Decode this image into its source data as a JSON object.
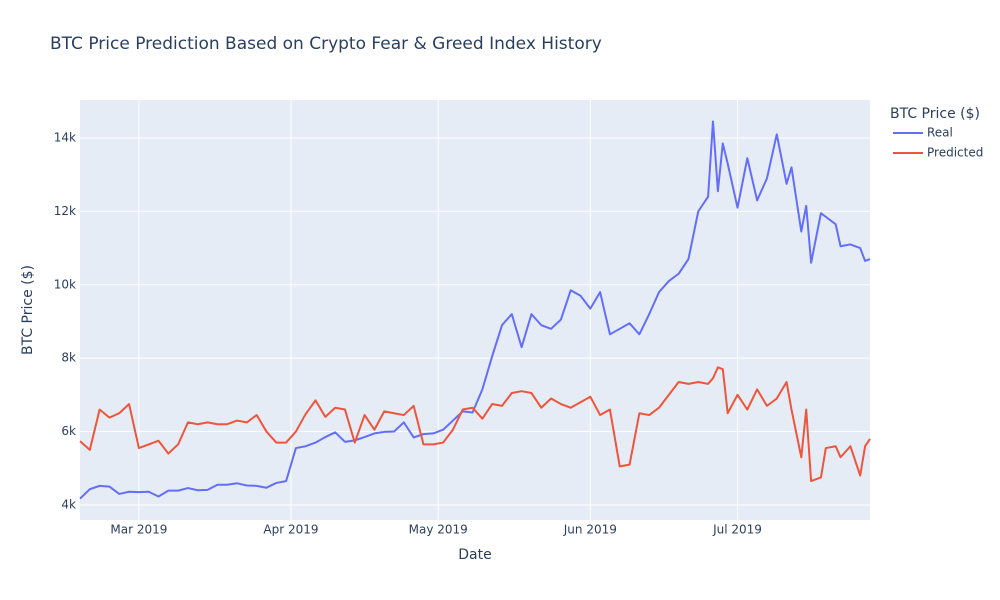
{
  "chart_data": {
    "type": "line",
    "title": "BTC Price Prediction Based on Crypto Fear & Greed Index History",
    "x_label": "Date",
    "y_label": "BTC Price ($)",
    "legend_title": "BTC Price ($)",
    "legend_position": "right",
    "grid": true,
    "x": [
      "2019-02-17",
      "2019-02-19",
      "2019-02-21",
      "2019-02-23",
      "2019-02-25",
      "2019-02-27",
      "2019-03-01",
      "2019-03-03",
      "2019-03-05",
      "2019-03-07",
      "2019-03-09",
      "2019-03-11",
      "2019-03-13",
      "2019-03-15",
      "2019-03-17",
      "2019-03-19",
      "2019-03-21",
      "2019-03-23",
      "2019-03-25",
      "2019-03-27",
      "2019-03-29",
      "2019-03-31",
      "2019-04-02",
      "2019-04-04",
      "2019-04-06",
      "2019-04-08",
      "2019-04-10",
      "2019-04-12",
      "2019-04-14",
      "2019-04-16",
      "2019-04-18",
      "2019-04-20",
      "2019-04-22",
      "2019-04-24",
      "2019-04-26",
      "2019-04-28",
      "2019-04-30",
      "2019-05-02",
      "2019-05-04",
      "2019-05-06",
      "2019-05-08",
      "2019-05-10",
      "2019-05-12",
      "2019-05-14",
      "2019-05-16",
      "2019-05-18",
      "2019-05-20",
      "2019-05-22",
      "2019-05-24",
      "2019-05-26",
      "2019-05-28",
      "2019-05-30",
      "2019-06-01",
      "2019-06-03",
      "2019-06-05",
      "2019-06-07",
      "2019-06-09",
      "2019-06-11",
      "2019-06-13",
      "2019-06-15",
      "2019-06-17",
      "2019-06-19",
      "2019-06-21",
      "2019-06-23",
      "2019-06-25",
      "2019-06-26",
      "2019-06-27",
      "2019-06-28",
      "2019-06-29",
      "2019-07-01",
      "2019-07-03",
      "2019-07-05",
      "2019-07-07",
      "2019-07-09",
      "2019-07-11",
      "2019-07-12",
      "2019-07-14",
      "2019-07-15",
      "2019-07-16",
      "2019-07-18",
      "2019-07-19",
      "2019-07-21",
      "2019-07-22",
      "2019-07-24",
      "2019-07-26",
      "2019-07-27",
      "2019-07-28"
    ],
    "series": [
      {
        "name": "Real",
        "color": "#636efa",
        "values": [
          4170,
          4430,
          4520,
          4500,
          4300,
          4360,
          4350,
          4360,
          4230,
          4390,
          4390,
          4460,
          4400,
          4410,
          4550,
          4550,
          4590,
          4530,
          4520,
          4470,
          4600,
          4650,
          5550,
          5600,
          5700,
          5850,
          5980,
          5720,
          5760,
          5850,
          5950,
          5990,
          6000,
          6250,
          5840,
          5930,
          5950,
          6050,
          6300,
          6550,
          6520,
          7150,
          8050,
          8900,
          9200,
          8300,
          9200,
          8900,
          8800,
          9050,
          9850,
          9700,
          9350,
          9800,
          8650,
          8800,
          8950,
          8650,
          9200,
          9800,
          10100,
          10300,
          10700,
          12000,
          12400,
          14450,
          12550,
          13850,
          13300,
          12100,
          13450,
          12300,
          12900,
          14100,
          12750,
          13200,
          11450,
          12150,
          10600,
          11950,
          11850,
          11650,
          11050,
          11100,
          11000,
          10650,
          10700
        ]
      },
      {
        "name": "Predicted",
        "color": "#ef553b",
        "values": [
          5740,
          5500,
          6600,
          6380,
          6500,
          6750,
          5550,
          5650,
          5750,
          5400,
          5650,
          6250,
          6200,
          6250,
          6200,
          6200,
          6300,
          6250,
          6450,
          6000,
          5700,
          5700,
          6000,
          6480,
          6850,
          6400,
          6650,
          6600,
          5700,
          6450,
          6050,
          6550,
          6500,
          6450,
          6700,
          5650,
          5650,
          5700,
          6050,
          6600,
          6650,
          6350,
          6750,
          6700,
          7050,
          7100,
          7050,
          6650,
          6900,
          6750,
          6650,
          6800,
          6950,
          6450,
          6600,
          5050,
          5100,
          6500,
          6450,
          6650,
          7000,
          7350,
          7300,
          7350,
          7300,
          7450,
          7750,
          7700,
          6500,
          7000,
          6600,
          7150,
          6700,
          6900,
          7350,
          6600,
          5300,
          6600,
          4650,
          4750,
          5550,
          5600,
          5300,
          5600,
          4800,
          5600,
          5800
        ]
      }
    ],
    "xlim": [
      "2019-02-17",
      "2019-07-28"
    ],
    "xticks": [
      {
        "value": "2019-03-01",
        "label": "Mar 2019"
      },
      {
        "value": "2019-04-01",
        "label": "Apr 2019"
      },
      {
        "value": "2019-05-01",
        "label": "May 2019"
      },
      {
        "value": "2019-06-01",
        "label": "Jun 2019"
      },
      {
        "value": "2019-07-01",
        "label": "Jul 2019"
      }
    ],
    "ylim": [
      3590,
      15035
    ],
    "yticks": [
      {
        "value": 4000,
        "label": "4k"
      },
      {
        "value": 6000,
        "label": "6k"
      },
      {
        "value": 8000,
        "label": "8k"
      },
      {
        "value": 10000,
        "label": "10k"
      },
      {
        "value": 12000,
        "label": "12k"
      },
      {
        "value": 14000,
        "label": "14k"
      }
    ]
  }
}
